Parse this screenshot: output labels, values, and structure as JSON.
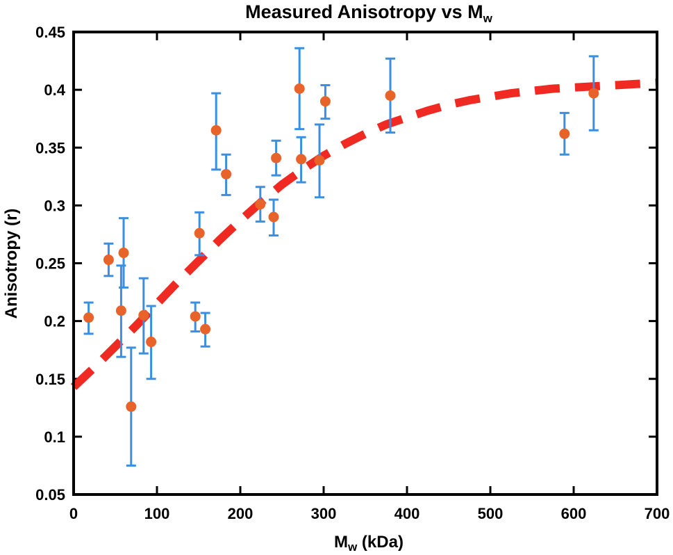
{
  "chart_data": {
    "type": "scatter",
    "title": {
      "main": "Measured Anisotropy vs M",
      "sub": "w"
    },
    "xlabel": {
      "main": "M",
      "sub": "w",
      "rest": " (kDa)"
    },
    "ylabel": "Anisotropy (r)",
    "xlim": [
      0,
      700
    ],
    "ylim": [
      0.05,
      0.45
    ],
    "x_ticks": [
      "0",
      "100",
      "200",
      "300",
      "400",
      "500",
      "600",
      "700"
    ],
    "x_tick_values": [
      0,
      100,
      200,
      300,
      400,
      500,
      600,
      700
    ],
    "y_ticks": [
      "0.05",
      "0.1",
      "0.15",
      "0.2",
      "0.25",
      "0.3",
      "0.35",
      "0.4",
      "0.45"
    ],
    "y_tick_values": [
      0.05,
      0.1,
      0.15,
      0.2,
      0.25,
      0.3,
      0.35,
      0.4,
      0.45
    ],
    "grid": false,
    "series": [
      {
        "kind": "points_with_error_bars",
        "point_color": "#e8632a",
        "error_color": "#3b8fe0",
        "points": [
          {
            "x": 18,
            "y": 0.203,
            "low": 0.189,
            "high": 0.216
          },
          {
            "x": 42,
            "y": 0.253,
            "low": 0.239,
            "high": 0.267
          },
          {
            "x": 57,
            "y": 0.209,
            "low": 0.169,
            "high": 0.248
          },
          {
            "x": 60,
            "y": 0.259,
            "low": 0.229,
            "high": 0.289
          },
          {
            "x": 69,
            "y": 0.126,
            "low": 0.075,
            "high": 0.177
          },
          {
            "x": 84,
            "y": 0.205,
            "low": 0.172,
            "high": 0.237
          },
          {
            "x": 93,
            "y": 0.182,
            "low": 0.15,
            "high": 0.213
          },
          {
            "x": 146,
            "y": 0.204,
            "low": 0.191,
            "high": 0.216
          },
          {
            "x": 151,
            "y": 0.276,
            "low": 0.257,
            "high": 0.294
          },
          {
            "x": 158,
            "y": 0.193,
            "low": 0.178,
            "high": 0.207
          },
          {
            "x": 171,
            "y": 0.365,
            "low": 0.331,
            "high": 0.397
          },
          {
            "x": 183,
            "y": 0.327,
            "low": 0.309,
            "high": 0.344
          },
          {
            "x": 224,
            "y": 0.301,
            "low": 0.286,
            "high": 0.316
          },
          {
            "x": 240,
            "y": 0.29,
            "low": 0.274,
            "high": 0.305
          },
          {
            "x": 243,
            "y": 0.341,
            "low": 0.326,
            "high": 0.356
          },
          {
            "x": 271,
            "y": 0.401,
            "low": 0.366,
            "high": 0.436
          },
          {
            "x": 273,
            "y": 0.34,
            "low": 0.32,
            "high": 0.359
          },
          {
            "x": 295,
            "y": 0.339,
            "low": 0.307,
            "high": 0.37
          },
          {
            "x": 302,
            "y": 0.39,
            "low": 0.375,
            "high": 0.404
          },
          {
            "x": 380,
            "y": 0.395,
            "low": 0.363,
            "high": 0.427
          },
          {
            "x": 589,
            "y": 0.362,
            "low": 0.344,
            "high": 0.38
          },
          {
            "x": 624,
            "y": 0.397,
            "low": 0.365,
            "high": 0.429
          }
        ]
      },
      {
        "kind": "fit_curve",
        "line_color": "#ee2a22",
        "line_style": "dashed",
        "x": [
          0,
          25,
          50,
          75,
          100,
          125,
          150,
          175,
          200,
          225,
          250,
          275,
          300,
          325,
          350,
          375,
          400,
          425,
          450,
          475,
          500,
          525,
          550,
          575,
          600,
          625,
          650,
          675,
          700
        ],
        "y": [
          0.143,
          0.16,
          0.178,
          0.196,
          0.215,
          0.234,
          0.252,
          0.27,
          0.287,
          0.303,
          0.318,
          0.331,
          0.343,
          0.353,
          0.362,
          0.37,
          0.376,
          0.382,
          0.387,
          0.391,
          0.394,
          0.397,
          0.399,
          0.401,
          0.402,
          0.403,
          0.404,
          0.405,
          0.406
        ]
      }
    ]
  }
}
